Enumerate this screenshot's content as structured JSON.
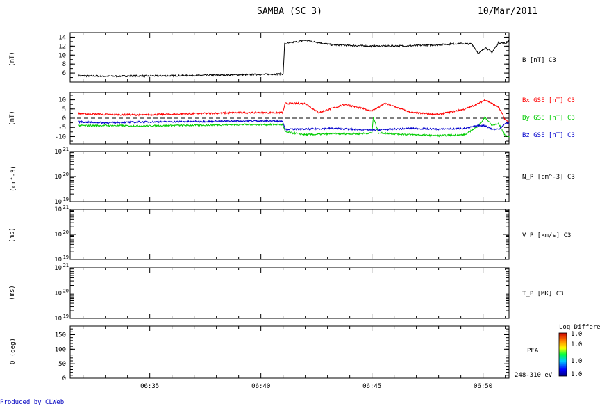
{
  "header": {
    "title": "SAMBA (SC 3)",
    "date": "10/Mar/2011"
  },
  "footer": {
    "produced_by": "Produced by CLWeb"
  },
  "panels": [
    {
      "ylabel": "(nT)",
      "legend": [
        {
          "text": "B [nT] C3",
          "color": "#000000"
        }
      ]
    },
    {
      "ylabel": "(nT)",
      "legend": [
        {
          "text": "Bx GSE [nT] C3",
          "color": "#ff0000"
        },
        {
          "text": "By GSE [nT] C3",
          "color": "#00cc00"
        },
        {
          "text": "Bz GSE [nT] C3",
          "color": "#0000cc"
        }
      ]
    },
    {
      "ylabel": "(cm^-3)",
      "legend": [
        {
          "text": "N_P [cm^-3] C3",
          "color": "#000000"
        }
      ]
    },
    {
      "ylabel": "(ms)",
      "legend": [
        {
          "text": "V_P [km/s] C3",
          "color": "#000000"
        }
      ]
    },
    {
      "ylabel": "(ms)",
      "legend": [
        {
          "text": "T_P [MK] C3",
          "color": "#000000"
        }
      ]
    },
    {
      "ylabel": "θ (deg)",
      "legend": [
        {
          "text": "PEA",
          "color": "#000000"
        },
        {
          "text": "248-310 eV",
          "color": "#000000"
        }
      ]
    }
  ],
  "colorbar": {
    "title": "Log Differential",
    "labels": [
      "1.0",
      "1.0",
      "1.0",
      "1.0"
    ]
  },
  "chart_data": [
    {
      "type": "line",
      "panel": 0,
      "ylim": [
        4,
        15
      ],
      "yticks": [
        6,
        8,
        10,
        12,
        14
      ],
      "series": [
        {
          "name": "B [nT] C3",
          "color": "#000000",
          "x": [
            6.53,
            6.55,
            6.6,
            6.65,
            6.667,
            6.6834,
            6.6845,
            6.7,
            6.72,
            6.75,
            6.78,
            6.8,
            6.815,
            6.825,
            6.83,
            6.835,
            6.84,
            6.845,
            6.85,
            6.853
          ],
          "y": [
            5.4,
            5.3,
            5.4,
            5.6,
            5.7,
            5.8,
            12.5,
            13.3,
            12.3,
            12.0,
            12.1,
            12.3,
            12.6,
            12.5,
            10.3,
            11.7,
            10.6,
            12.8,
            12.6,
            13.2
          ]
        }
      ]
    },
    {
      "type": "line",
      "panel": 1,
      "ylim": [
        -14,
        14
      ],
      "yticks": [
        -10,
        -5,
        0,
        5,
        10
      ],
      "series": [
        {
          "name": "Bx GSE [nT] C3",
          "color": "#ff0000",
          "x": [
            6.53,
            6.55,
            6.58,
            6.62,
            6.65,
            6.683,
            6.685,
            6.7,
            6.71,
            6.73,
            6.75,
            6.76,
            6.78,
            6.8,
            6.81,
            6.82,
            6.83,
            6.835,
            6.845,
            6.85,
            6.853
          ],
          "y": [
            2.5,
            2.0,
            1.8,
            2.5,
            3.0,
            3.0,
            8.0,
            8.0,
            3.0,
            7.5,
            4.0,
            8.0,
            3.0,
            2.0,
            3.5,
            5.0,
            8.0,
            10.0,
            6.0,
            -1.0,
            -2.0
          ]
        },
        {
          "name": "By GSE [nT] C3",
          "color": "#00cc00",
          "x": [
            6.53,
            6.55,
            6.58,
            6.62,
            6.65,
            6.683,
            6.685,
            6.7,
            6.72,
            6.74,
            6.75,
            6.751,
            6.755,
            6.78,
            6.8,
            6.82,
            6.83,
            6.835,
            6.84,
            6.845,
            6.85,
            6.853
          ],
          "y": [
            -4.0,
            -4.0,
            -4.2,
            -3.8,
            -3.5,
            -3.5,
            -7.5,
            -9.0,
            -8.5,
            -8.5,
            -8.0,
            0.5,
            -8.0,
            -9.0,
            -9.5,
            -9.0,
            -4.0,
            0.5,
            -4.0,
            -3.0,
            -9.5,
            -10.0
          ]
        },
        {
          "name": "Bz GSE [nT] C3",
          "color": "#0000cc",
          "x": [
            6.53,
            6.55,
            6.58,
            6.62,
            6.65,
            6.683,
            6.685,
            6.7,
            6.72,
            6.75,
            6.78,
            6.8,
            6.82,
            6.83,
            6.835,
            6.84,
            6.845,
            6.85,
            6.853
          ],
          "y": [
            -2.0,
            -2.5,
            -2.0,
            -1.8,
            -1.5,
            -1.5,
            -6.0,
            -6.0,
            -5.5,
            -6.5,
            -5.5,
            -6.0,
            -5.5,
            -4.0,
            -4.0,
            -6.0,
            -6.0,
            -3.0,
            -2.5
          ]
        }
      ],
      "reference_lines": [
        {
          "y": 0,
          "style": "dashed"
        }
      ]
    },
    {
      "type": "line",
      "panel": 2,
      "log": true,
      "ylim_exp": [
        19,
        21
      ],
      "yticks": [
        "10^19",
        "10^20",
        "10^21"
      ],
      "series": []
    },
    {
      "type": "line",
      "panel": 3,
      "log": true,
      "ylim_exp": [
        19,
        21
      ],
      "yticks": [
        "10^19",
        "10^20",
        "10^21"
      ],
      "series": []
    },
    {
      "type": "line",
      "panel": 4,
      "log": true,
      "ylim_exp": [
        19,
        21
      ],
      "yticks": [
        "10^19",
        "10^20",
        "10^21"
      ],
      "series": []
    },
    {
      "type": "heatmap",
      "panel": 5,
      "ylim": [
        0,
        180
      ],
      "yticks": [
        0,
        50,
        100,
        150
      ],
      "series": []
    }
  ],
  "xaxis": {
    "xlim": [
      6.5236,
      6.8528
    ],
    "ticks": [
      {
        "x": 6.5833,
        "label": "06:35"
      },
      {
        "x": 6.6667,
        "label": "06:40"
      },
      {
        "x": 6.75,
        "label": "06:45"
      },
      {
        "x": 6.8333,
        "label": "06:50"
      }
    ]
  }
}
